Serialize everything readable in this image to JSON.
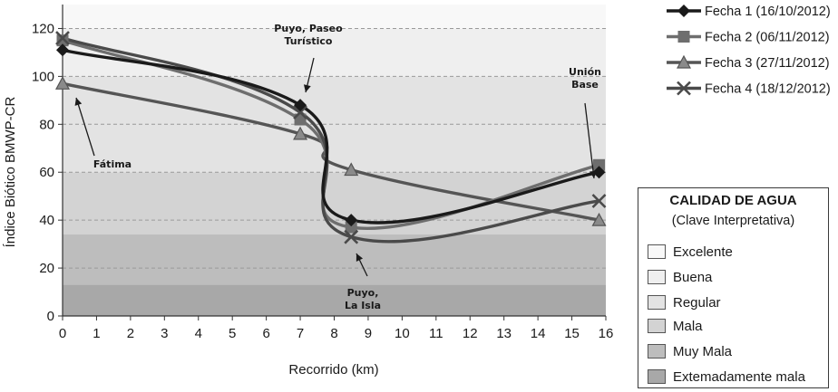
{
  "chart_data": {
    "type": "line",
    "xlabel": "Recorrido (km)",
    "ylabel": "Índice Biótico BMWP-CR",
    "xlim": [
      0,
      16
    ],
    "ylim": [
      0,
      130
    ],
    "xticks": [
      "0",
      "1",
      "2",
      "3",
      "4",
      "5",
      "6",
      "7",
      "8",
      "9",
      "10",
      "11",
      "12",
      "13",
      "14",
      "15",
      "16"
    ],
    "yticks": [
      "0",
      "20",
      "40",
      "60",
      "80",
      "100",
      "120"
    ],
    "grid": "horizontal dashed",
    "legend_position": "top-right",
    "series": [
      {
        "name": "Fecha 1 (16/10/2012)",
        "marker": "diamond",
        "color": "#1a1a1a",
        "x": [
          0,
          7,
          8.5,
          15.8
        ],
        "y": [
          111,
          88,
          40,
          60
        ]
      },
      {
        "name": "Fecha 2 (06/11/2012)",
        "marker": "square",
        "color": "#6e6e6e",
        "x": [
          0,
          7,
          8.5,
          15.8
        ],
        "y": [
          115,
          82,
          37,
          63
        ]
      },
      {
        "name": "Fecha 3 (27/11/2012)",
        "marker": "triangle",
        "color": "#555555",
        "x": [
          0,
          7,
          8.5,
          15.8
        ],
        "y": [
          97,
          76,
          61,
          40
        ]
      },
      {
        "name": "Fecha 4 (18/12/2012)",
        "marker": "x",
        "color": "#4a4a4a",
        "x": [
          0,
          7,
          8.5,
          15.8
        ],
        "y": [
          116,
          85,
          33,
          48
        ]
      }
    ],
    "bands": [
      {
        "label": "Excelente",
        "from": 120,
        "to": 130,
        "color": "#f8f8f8"
      },
      {
        "label": "Buena",
        "from": 100,
        "to": 120,
        "color": "#efefef"
      },
      {
        "label": "Regular",
        "from": 60,
        "to": 100,
        "color": "#e3e3e3"
      },
      {
        "label": "Mala",
        "from": 34,
        "to": 60,
        "color": "#d3d3d3"
      },
      {
        "label": "Muy Mala",
        "from": 13,
        "to": 34,
        "color": "#bdbdbd"
      },
      {
        "label": "Extemadamente mala",
        "from": 0,
        "to": 13,
        "color": "#a8a8a8"
      }
    ],
    "annotations": [
      {
        "lines": [
          "Puyo, Paseo",
          "Turístico"
        ]
      },
      {
        "lines": [
          "Fátima"
        ]
      },
      {
        "lines": [
          "Puyo,",
          "La Isla"
        ]
      },
      {
        "lines": [
          "Unión",
          "Base"
        ]
      }
    ]
  },
  "quality_legend": {
    "title": "CALIDAD DE AGUA",
    "subtitle": "(Clave Interpretativa)",
    "items": [
      {
        "label": "Excelente",
        "color": "#f8f8f8"
      },
      {
        "label": "Buena",
        "color": "#efefef"
      },
      {
        "label": "Regular",
        "color": "#e3e3e3"
      },
      {
        "label": "Mala",
        "color": "#d3d3d3"
      },
      {
        "label": "Muy Mala",
        "color": "#bdbdbd"
      },
      {
        "label": "Extemadamente mala",
        "color": "#a8a8a8"
      }
    ]
  }
}
